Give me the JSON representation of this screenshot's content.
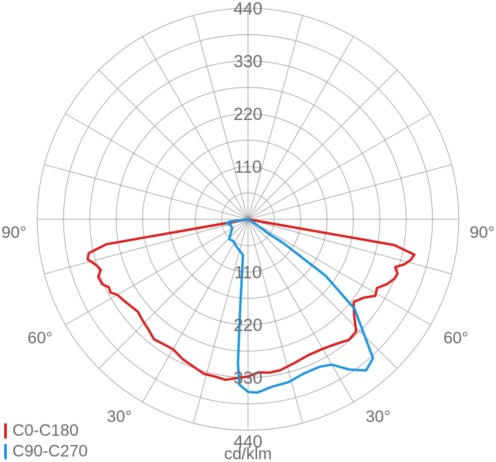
{
  "chart_data": {
    "type": "polar",
    "unit_label": "cd/klm",
    "rmax": 440,
    "radial_ticks": [
      110,
      220,
      330,
      440
    ],
    "angle_labels": [
      {
        "text": "90°",
        "side": "left"
      },
      {
        "text": "90°",
        "side": "right"
      },
      {
        "text": "60°",
        "side": "left"
      },
      {
        "text": "60°",
        "side": "right"
      },
      {
        "text": "30°",
        "side": "left"
      },
      {
        "text": "30°",
        "side": "right"
      }
    ],
    "series": [
      {
        "name": "C0-C180",
        "color": "#dd1f1f",
        "points": [
          [
            -90,
            0
          ],
          [
            -85,
            0
          ],
          [
            -80,
            300
          ],
          [
            -78,
            340
          ],
          [
            -76,
            345
          ],
          [
            -73,
            330
          ],
          [
            -71,
            325
          ],
          [
            -69,
            335
          ],
          [
            -66,
            333
          ],
          [
            -64,
            323
          ],
          [
            -62,
            325
          ],
          [
            -60,
            315
          ],
          [
            -57,
            310
          ],
          [
            -54,
            305
          ],
          [
            -50,
            300
          ],
          [
            -46,
            305
          ],
          [
            -42,
            310
          ],
          [
            -38,
            318
          ],
          [
            -35,
            315
          ],
          [
            -30,
            313
          ],
          [
            -25,
            322
          ],
          [
            -20,
            328
          ],
          [
            -16,
            335
          ],
          [
            -12,
            335
          ],
          [
            -8,
            338
          ],
          [
            -4,
            332
          ],
          [
            0,
            328
          ],
          [
            4,
            320
          ],
          [
            8,
            323
          ],
          [
            12,
            322
          ],
          [
            18,
            315
          ],
          [
            24,
            310
          ],
          [
            30,
            312
          ],
          [
            35,
            318
          ],
          [
            40,
            328
          ],
          [
            44,
            325
          ],
          [
            48,
            298
          ],
          [
            52,
            280
          ],
          [
            56,
            292
          ],
          [
            59,
            310
          ],
          [
            62,
            305
          ],
          [
            65,
            320
          ],
          [
            68,
            330
          ],
          [
            70,
            332
          ],
          [
            72,
            323
          ],
          [
            74,
            340
          ],
          [
            76,
            350
          ],
          [
            78,
            355
          ],
          [
            80,
            310
          ],
          [
            85,
            0
          ],
          [
            90,
            0
          ]
        ]
      },
      {
        "name": "C90-C270",
        "color": "#1d96e0",
        "points": [
          [
            -90,
            0
          ],
          [
            -83,
            38
          ],
          [
            -80,
            45
          ],
          [
            -76,
            42
          ],
          [
            -72,
            38
          ],
          [
            -60,
            38
          ],
          [
            -44,
            57
          ],
          [
            -35,
            55
          ],
          [
            -20,
            64
          ],
          [
            -8,
            75
          ],
          [
            -5,
            190
          ],
          [
            -4,
            300
          ],
          [
            -3,
            345
          ],
          [
            0,
            360
          ],
          [
            3,
            362
          ],
          [
            8,
            353
          ],
          [
            14,
            350
          ],
          [
            20,
            342
          ],
          [
            26,
            342
          ],
          [
            30,
            350
          ],
          [
            34,
            378
          ],
          [
            38,
            400
          ],
          [
            42,
            390
          ],
          [
            46,
            332
          ],
          [
            50,
            290
          ],
          [
            54,
            200
          ],
          [
            56,
            90
          ],
          [
            55,
            50
          ],
          [
            58,
            20
          ],
          [
            60,
            0
          ]
        ]
      }
    ]
  }
}
